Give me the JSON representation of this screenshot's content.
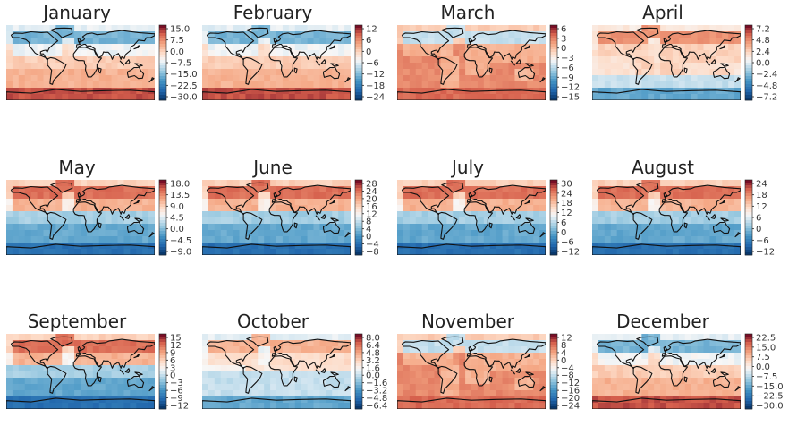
{
  "chart_data": [
    {
      "type": "heatmap",
      "title": "January",
      "colormap": "RdBu_r",
      "colorbar_ticks": [
        "15.0",
        "7.5",
        "0.0",
        "−7.5",
        "−15.0",
        "−22.5",
        "−30.0"
      ],
      "vmin": -33,
      "vmax": 19,
      "pattern": "south_warm"
    },
    {
      "type": "heatmap",
      "title": "February",
      "colormap": "RdBu_r",
      "colorbar_ticks": [
        "12",
        "6",
        "0",
        "−6",
        "−12",
        "−18",
        "−24"
      ],
      "vmin": -28,
      "vmax": 14,
      "pattern": "south_warm"
    },
    {
      "type": "heatmap",
      "title": "March",
      "colormap": "RdBu_r",
      "colorbar_ticks": [
        "6",
        "3",
        "0",
        "−3",
        "−6",
        "−9",
        "−12",
        "−15"
      ],
      "vmin": -18,
      "vmax": 8,
      "pattern": "warm_all"
    },
    {
      "type": "heatmap",
      "title": "April",
      "colormap": "RdBu_r",
      "colorbar_ticks": [
        "7.2",
        "4.8",
        "2.4",
        "0.0",
        "−2.4",
        "−4.8",
        "−7.2"
      ],
      "vmin": -9,
      "vmax": 8.5,
      "pattern": "mild"
    },
    {
      "type": "heatmap",
      "title": "May",
      "colormap": "RdBu_r",
      "colorbar_ticks": [
        "18.0",
        "13.5",
        "9.0",
        "4.5",
        "0.0",
        "−4.5",
        "−9.0"
      ],
      "vmin": -11,
      "vmax": 20,
      "pattern": "north_warm"
    },
    {
      "type": "heatmap",
      "title": "June",
      "colormap": "RdBu_r",
      "colorbar_ticks": [
        "28",
        "24",
        "20",
        "16",
        "12",
        "8",
        "4",
        "0",
        "−4",
        "−8"
      ],
      "vmin": -10,
      "vmax": 30,
      "pattern": "north_warm"
    },
    {
      "type": "heatmap",
      "title": "July",
      "colormap": "RdBu_r",
      "colorbar_ticks": [
        "30",
        "24",
        "18",
        "12",
        "6",
        "0",
        "−6",
        "−12"
      ],
      "vmin": -14,
      "vmax": 32,
      "pattern": "north_warm"
    },
    {
      "type": "heatmap",
      "title": "August",
      "colormap": "RdBu_r",
      "colorbar_ticks": [
        "24",
        "18",
        "12",
        "6",
        "0",
        "−6",
        "−12"
      ],
      "vmin": -14,
      "vmax": 26,
      "pattern": "north_warm"
    },
    {
      "type": "heatmap",
      "title": "September",
      "colormap": "RdBu_r",
      "colorbar_ticks": [
        "15",
        "12",
        "9",
        "6",
        "3",
        "0",
        "−3",
        "−6",
        "−9",
        "−12"
      ],
      "vmin": -13,
      "vmax": 16,
      "pattern": "north_warm"
    },
    {
      "type": "heatmap",
      "title": "October",
      "colormap": "RdBu_r",
      "colorbar_ticks": [
        "8.0",
        "6.4",
        "4.8",
        "3.2",
        "1.6",
        "0.0",
        "−1.6",
        "−3.2",
        "−4.8",
        "−6.4"
      ],
      "vmin": -6.8,
      "vmax": 8.2,
      "pattern": "mixed"
    },
    {
      "type": "heatmap",
      "title": "November",
      "colormap": "RdBu_r",
      "colorbar_ticks": [
        "12",
        "8",
        "4",
        "0",
        "−4",
        "−8",
        "−12",
        "−16",
        "−20",
        "−24"
      ],
      "vmin": -26,
      "vmax": 13,
      "pattern": "warm_all"
    },
    {
      "type": "heatmap",
      "title": "December",
      "colormap": "RdBu_r",
      "colorbar_ticks": [
        "22.5",
        "15.0",
        "7.5",
        "0.0",
        "−7.5",
        "−15.0",
        "−22.5",
        "−30.0"
      ],
      "vmin": -33,
      "vmax": 25,
      "pattern": "south_warm"
    }
  ]
}
